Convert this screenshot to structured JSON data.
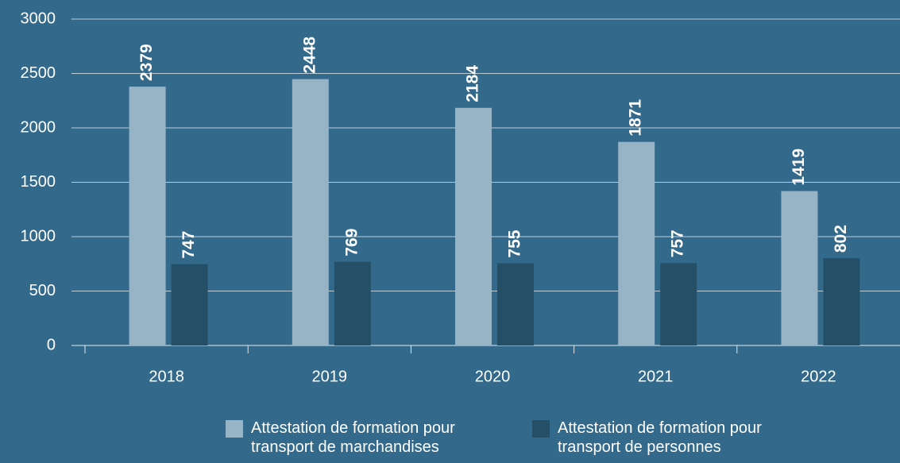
{
  "chart_data": {
    "type": "bar",
    "categories": [
      "2018",
      "2019",
      "2020",
      "2021",
      "2022"
    ],
    "series": [
      {
        "name": "Attestation de formation pour transport de marchandises",
        "color": "#97b3c6",
        "values": [
          2379,
          2448,
          2184,
          1871,
          1419
        ]
      },
      {
        "name": "Attestation de formation pour transport de personnes",
        "color": "#244f66",
        "values": [
          747,
          769,
          755,
          757,
          802
        ]
      }
    ],
    "ylim": [
      0,
      3000
    ],
    "yticks": [
      0,
      500,
      1000,
      1500,
      2000,
      2500,
      3000
    ],
    "grid": true,
    "legend": "bottom"
  }
}
